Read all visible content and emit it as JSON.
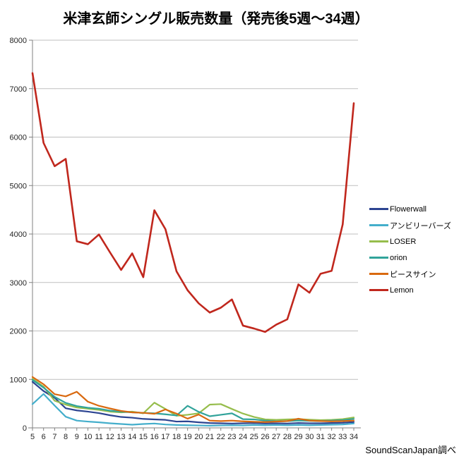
{
  "title": "米津玄師シングル販売数量（発売後5週～34週）",
  "footer": "SoundScanJapan調べ",
  "colors": {
    "background": "#FFFFFF",
    "grid": "#BFBFBF",
    "axis": "#808080",
    "text": "#262626",
    "title": "#000000"
  },
  "chart_data": {
    "type": "line",
    "title": "米津玄師シングル販売数量（発売後5週～34週）",
    "xlabel": "",
    "ylabel": "",
    "x": [
      5,
      6,
      7,
      8,
      9,
      10,
      11,
      12,
      13,
      14,
      15,
      16,
      17,
      18,
      19,
      20,
      21,
      22,
      23,
      24,
      25,
      26,
      27,
      28,
      29,
      30,
      31,
      32,
      33,
      34
    ],
    "ylim": [
      0,
      8000
    ],
    "ytick_step": 1000,
    "grid": true,
    "legend_position": "right",
    "source_credit": "SoundScanJapan調べ",
    "series": [
      {
        "name": "Flowerwall",
        "color": "#2C4491",
        "width": 2.2,
        "values": [
          950,
          760,
          620,
          405,
          360,
          335,
          305,
          260,
          225,
          210,
          185,
          175,
          165,
          130,
          135,
          115,
          100,
          95,
          90,
          95,
          100,
          90,
          95,
          90,
          100,
          95,
          95,
          100,
          105,
          120
        ]
      },
      {
        "name": "アンビリーバーズ",
        "color": "#44AECB",
        "width": 2.2,
        "values": [
          490,
          700,
          460,
          230,
          150,
          130,
          115,
          95,
          80,
          65,
          80,
          90,
          70,
          60,
          55,
          50,
          45,
          50,
          55,
          50,
          60,
          55,
          60,
          55,
          60,
          55,
          60,
          65,
          70,
          90
        ]
      },
      {
        "name": "LOSER",
        "color": "#96BD4C",
        "width": 2.2,
        "values": [
          1010,
          850,
          560,
          480,
          420,
          395,
          370,
          335,
          320,
          335,
          300,
          520,
          390,
          250,
          270,
          300,
          480,
          490,
          390,
          295,
          225,
          175,
          165,
          175,
          180,
          170,
          160,
          165,
          180,
          215
        ]
      },
      {
        "name": "orion",
        "color": "#31A39A",
        "width": 2.2,
        "values": [
          990,
          830,
          640,
          515,
          450,
          415,
          395,
          355,
          335,
          320,
          310,
          300,
          280,
          255,
          455,
          330,
          240,
          270,
          300,
          180,
          175,
          150,
          135,
          140,
          150,
          145,
          140,
          150,
          160,
          185
        ]
      },
      {
        "name": "ピースサイン",
        "color": "#D9690F",
        "width": 2.2,
        "values": [
          1050,
          900,
          695,
          650,
          745,
          540,
          455,
          400,
          350,
          320,
          310,
          290,
          380,
          295,
          190,
          275,
          150,
          140,
          150,
          135,
          125,
          120,
          130,
          140,
          190,
          150,
          140,
          135,
          140,
          150
        ]
      },
      {
        "name": "Lemon",
        "color": "#C0271D",
        "width": 2.6,
        "values": [
          7320,
          5880,
          5400,
          5550,
          3850,
          3790,
          3990,
          3620,
          3260,
          3600,
          3110,
          4490,
          4100,
          3230,
          2840,
          2570,
          2380,
          2480,
          2650,
          2110,
          2050,
          1980,
          2130,
          2240,
          2960,
          2790,
          3180,
          3240,
          4200,
          6700
        ]
      }
    ]
  }
}
